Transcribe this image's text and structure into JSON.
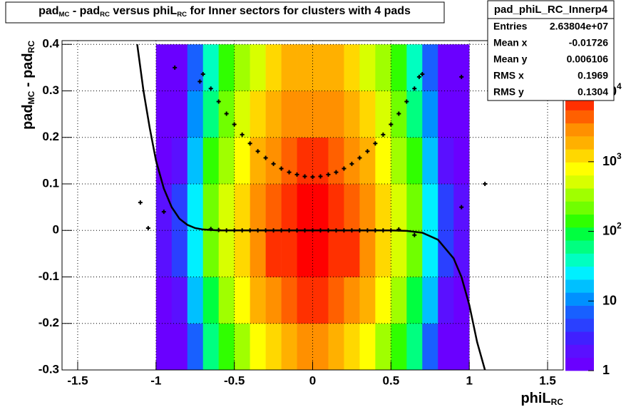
{
  "chart_data": {
    "type": "heatmap",
    "title": [
      {
        "text": "pad"
      },
      {
        "text": "MC",
        "sub": true
      },
      {
        "text": " - pad"
      },
      {
        "text": "RC",
        "sub": true
      },
      {
        "text": " versus phiL"
      },
      {
        "text": "RC",
        "sub": true
      },
      {
        "text": " for Inner sectors for clusters with 4 pads"
      }
    ],
    "xlabel": [
      {
        "text": "phiL"
      },
      {
        "text": "RC",
        "sub": true
      }
    ],
    "ylabel": [
      {
        "text": "pad"
      },
      {
        "text": "MC",
        "sub": true
      },
      {
        "text": " - pad"
      },
      {
        "text": "RC",
        "sub": true
      }
    ],
    "xlim": [
      -1.6,
      1.6
    ],
    "ylim": [
      -0.3,
      0.408
    ],
    "xticks": [
      -1.5,
      -1,
      -0.5,
      0,
      0.5,
      1,
      1.5
    ],
    "yticks": [
      -0.3,
      -0.2,
      -0.1,
      0,
      0.1,
      0.2,
      0.3,
      0.4
    ],
    "grid": true,
    "zlim": [
      1,
      13000
    ],
    "zlog": true,
    "zticks": [
      1,
      10,
      {
        "value": 100,
        "label": "10",
        "exponent": "2"
      },
      {
        "value": 1000,
        "label": "10",
        "exponent": "3"
      },
      {
        "value": 10000,
        "label": "10",
        "exponent": "4"
      }
    ],
    "palette": [
      "#6a00ff",
      "#5a10ff",
      "#4020ff",
      "#2a40ff",
      "#1860ff",
      "#0090ff",
      "#00c0ff",
      "#00f0ff",
      "#00ffc0",
      "#00ff80",
      "#00ff40",
      "#30ff00",
      "#70ff00",
      "#a0ff00",
      "#d8ff00",
      "#ffff00",
      "#ffd800",
      "#ffb000",
      "#ff9000",
      "#ff6000",
      "#ff3000",
      "#ff0000"
    ],
    "x_edges": [
      -1.2,
      -1.1,
      -1.0,
      -0.9,
      -0.8,
      -0.7,
      -0.6,
      -0.5,
      -0.4,
      -0.3,
      -0.2,
      -0.1,
      0,
      0.1,
      0.2,
      0.3,
      0.4,
      0.5,
      0.6,
      0.7,
      0.8,
      0.9,
      1.0,
      1.1,
      1.2
    ],
    "y_edges": [
      -0.3,
      -0.2,
      -0.1,
      0,
      0.1,
      0.2,
      0.3,
      0.4
    ],
    "z": [
      [
        null,
        null,
        1,
        1,
        8,
        50,
        150,
        380,
        750,
        1400,
        2000,
        2500,
        2500,
        2000,
        1400,
        750,
        380,
        150,
        50,
        8,
        1,
        1,
        null,
        null
      ],
      [
        null,
        null,
        1,
        2,
        16,
        110,
        330,
        820,
        1650,
        3000,
        4400,
        5500,
        5500,
        4400,
        3000,
        1650,
        820,
        330,
        110,
        16,
        2,
        1,
        null,
        null
      ],
      [
        null,
        null,
        2,
        4,
        30,
        200,
        600,
        1500,
        3000,
        5500,
        8000,
        10000,
        10000,
        8000,
        5500,
        3000,
        1500,
        600,
        200,
        30,
        4,
        2,
        null,
        null
      ],
      [
        null,
        null,
        2,
        4,
        28,
        190,
        570,
        1400,
        2850,
        5200,
        7600,
        9500,
        9500,
        7600,
        5200,
        2850,
        1400,
        570,
        190,
        28,
        4,
        2,
        null,
        null
      ],
      [
        null,
        null,
        1,
        2,
        18,
        120,
        360,
        900,
        1800,
        3300,
        4800,
        6000,
        6000,
        4800,
        3300,
        1800,
        900,
        360,
        120,
        18,
        2,
        1,
        null,
        null
      ],
      [
        null,
        null,
        1,
        1,
        10,
        70,
        210,
        520,
        1050,
        1900,
        2800,
        3500,
        3500,
        2800,
        1900,
        1050,
        520,
        210,
        70,
        10,
        1,
        1,
        null,
        null
      ],
      [
        null,
        null,
        1,
        1,
        6,
        40,
        120,
        300,
        600,
        1100,
        1600,
        2000,
        2000,
        1600,
        1100,
        600,
        300,
        120,
        40,
        6,
        1,
        1,
        null,
        null
      ]
    ],
    "points": {
      "x": [
        -0.7,
        -0.65,
        -0.6,
        -0.55,
        -0.5,
        -0.45,
        -0.4,
        -0.35,
        -0.3,
        -0.25,
        -0.2,
        -0.15,
        -0.1,
        -0.05,
        0,
        0.05,
        0.1,
        0.15,
        0.2,
        0.25,
        0.3,
        0.35,
        0.4,
        0.45,
        0.5,
        0.55,
        0.6,
        0.65,
        0.7,
        -0.65,
        -0.6,
        -0.55,
        -0.5,
        -0.45,
        -0.4,
        -0.35,
        -0.3,
        -0.25,
        -0.2,
        -0.15,
        -0.1,
        -0.05,
        0,
        0.05,
        0.1,
        0.15,
        0.2,
        0.25,
        0.3,
        0.35,
        0.4,
        0.45,
        0.5,
        0.55,
        -1.1,
        -1.05,
        -0.95,
        -0.88,
        -0.72,
        0.68,
        0.95,
        0.95,
        1.1,
        0.65
      ],
      "y": [
        0.336,
        0.305,
        0.277,
        0.251,
        0.228,
        0.206,
        0.187,
        0.17,
        0.156,
        0.143,
        0.133,
        0.125,
        0.12,
        0.116,
        0.115,
        0.116,
        0.12,
        0.125,
        0.133,
        0.143,
        0.156,
        0.17,
        0.187,
        0.206,
        0.228,
        0.251,
        0.277,
        0.305,
        0.336,
        0.003,
        0.001,
        0,
        0,
        0,
        0,
        0,
        0,
        0,
        0,
        0,
        0,
        0,
        0,
        0,
        0,
        0,
        0,
        0,
        0,
        0,
        0,
        0,
        0,
        0.002,
        0.06,
        0.005,
        0.04,
        0.35,
        0.32,
        0.33,
        0.33,
        0.05,
        0.1,
        -0.01
      ]
    },
    "fit": {
      "x": [
        -1.12,
        -1.08,
        -1.04,
        -1.0,
        -0.95,
        -0.9,
        -0.85,
        -0.8,
        -0.75,
        -0.7,
        -0.6,
        0,
        0.5,
        0.6,
        0.7,
        0.8,
        0.9,
        0.95,
        1.0,
        1.05,
        1.1
      ],
      "y": [
        0.4,
        0.3,
        0.22,
        0.15,
        0.09,
        0.05,
        0.025,
        0.012,
        0.005,
        0.002,
        0,
        0,
        0,
        -0.001,
        -0.005,
        -0.02,
        -0.06,
        -0.1,
        -0.16,
        -0.24,
        -0.3
      ]
    },
    "stats": {
      "title": "pad_phiL_RC_Innerp4",
      "rows": [
        [
          "Entries",
          "2.63804e+07"
        ],
        [
          "Mean x",
          "-0.01726"
        ],
        [
          "Mean y",
          "0.006106"
        ],
        [
          "RMS x",
          "0.1969"
        ],
        [
          "RMS y",
          "0.1304"
        ]
      ]
    }
  }
}
